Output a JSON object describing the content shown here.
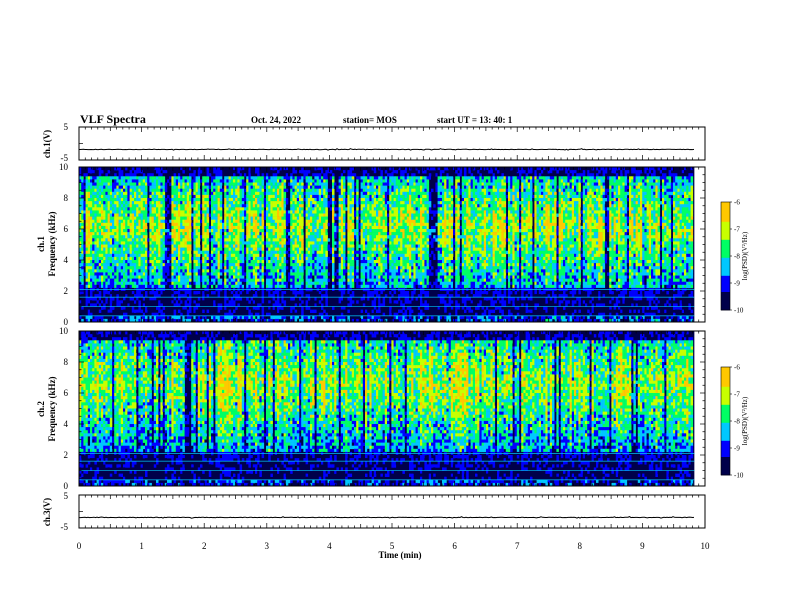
{
  "header": {
    "title": "VLF Spectra",
    "date": "Oct. 24, 2022",
    "station": "station= MOS",
    "start": "start  UT =   13: 40: 1"
  },
  "chart_data": [
    {
      "type": "line",
      "panel": "ch1-voltage",
      "ylabel": "ch.1(V)",
      "ylim": [
        -5,
        5
      ],
      "y_ticks": [
        "5",
        "-5"
      ],
      "xlim": [
        0,
        10
      ],
      "baseline_value": -1.8
    },
    {
      "type": "heatmap",
      "panel": "ch1-spectrogram",
      "ylabel": "ch.1\nFrequency (kHz)",
      "ylim": [
        0,
        10
      ],
      "y_ticks": [
        "0",
        "2",
        "4",
        "6",
        "8",
        "10"
      ],
      "xlim": [
        0,
        10
      ],
      "x_end": 9.83,
      "colorbar": {
        "label": "log(PSD)(V²/Hz)",
        "range": [
          -10,
          -6
        ],
        "ticks": [
          "-6",
          "-7",
          "-8",
          "-9",
          "-10"
        ]
      }
    },
    {
      "type": "heatmap",
      "panel": "ch2-spectrogram",
      "ylabel": "ch.2\nFrequency (kHz)",
      "ylim": [
        0,
        10
      ],
      "y_ticks": [
        "0",
        "2",
        "4",
        "6",
        "8",
        "10"
      ],
      "xlim": [
        0,
        10
      ],
      "x_end": 9.83,
      "colorbar": {
        "label": "log(PSD)(V²/Hz)",
        "range": [
          -10,
          -6
        ],
        "ticks": [
          "-6",
          "-7",
          "-8",
          "-9",
          "-10"
        ]
      }
    },
    {
      "type": "line",
      "panel": "ch3-voltage",
      "ylabel": "ch.3(V)",
      "ylim": [
        -5,
        5
      ],
      "y_ticks": [
        "5",
        "-5"
      ],
      "xlim": [
        0,
        10
      ],
      "baseline_value": -1.8
    }
  ],
  "x_axis": {
    "label": "Time  (min)",
    "ticks": [
      "0",
      "1",
      "2",
      "3",
      "4",
      "5",
      "6",
      "7",
      "8",
      "9",
      "10"
    ]
  },
  "colors": {
    "palette": [
      "#00004a",
      "#0000ff",
      "#00c8ff",
      "#00ff64",
      "#c8ff00",
      "#ffc800",
      "#ff0000",
      "#ffffff"
    ]
  }
}
